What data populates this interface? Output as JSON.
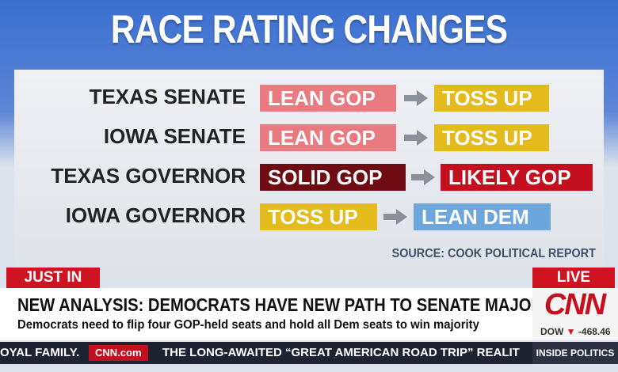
{
  "title": "RACE RATING CHANGES",
  "rows": [
    {
      "race": "TEXAS SENATE",
      "from": "LEAN GOP",
      "to": "TOSS UP"
    },
    {
      "race": "IOWA SENATE",
      "from": "LEAN GOP",
      "to": "TOSS UP"
    },
    {
      "race": "TEXAS GOVERNOR",
      "from": "SOLID GOP",
      "to": "LIKELY GOP"
    },
    {
      "race": "IOWA GOVERNOR",
      "from": "TOSS UP",
      "to": "LEAN DEM"
    }
  ],
  "source": "SOURCE: COOK POLITICAL REPORT",
  "lower_third": {
    "tag": "JUST IN",
    "live": "LIVE",
    "headline": "NEW ANALYSIS: DEMOCRATS HAVE NEW PATH TO SENATE MAJORITY",
    "subline": "Democrats need to flip four GOP-held seats and hold all Dem seats to win majority",
    "logo": "CNN",
    "market": "DOW",
    "market_change": "-468.46"
  },
  "ticker": {
    "left": "OYAL FAMILY.",
    "site": "CNN.com",
    "text": "THE LONG-AWAITED “GREAT AMERICAN ROAD TRIP” REALIT",
    "show": "INSIDE POLITICS"
  }
}
